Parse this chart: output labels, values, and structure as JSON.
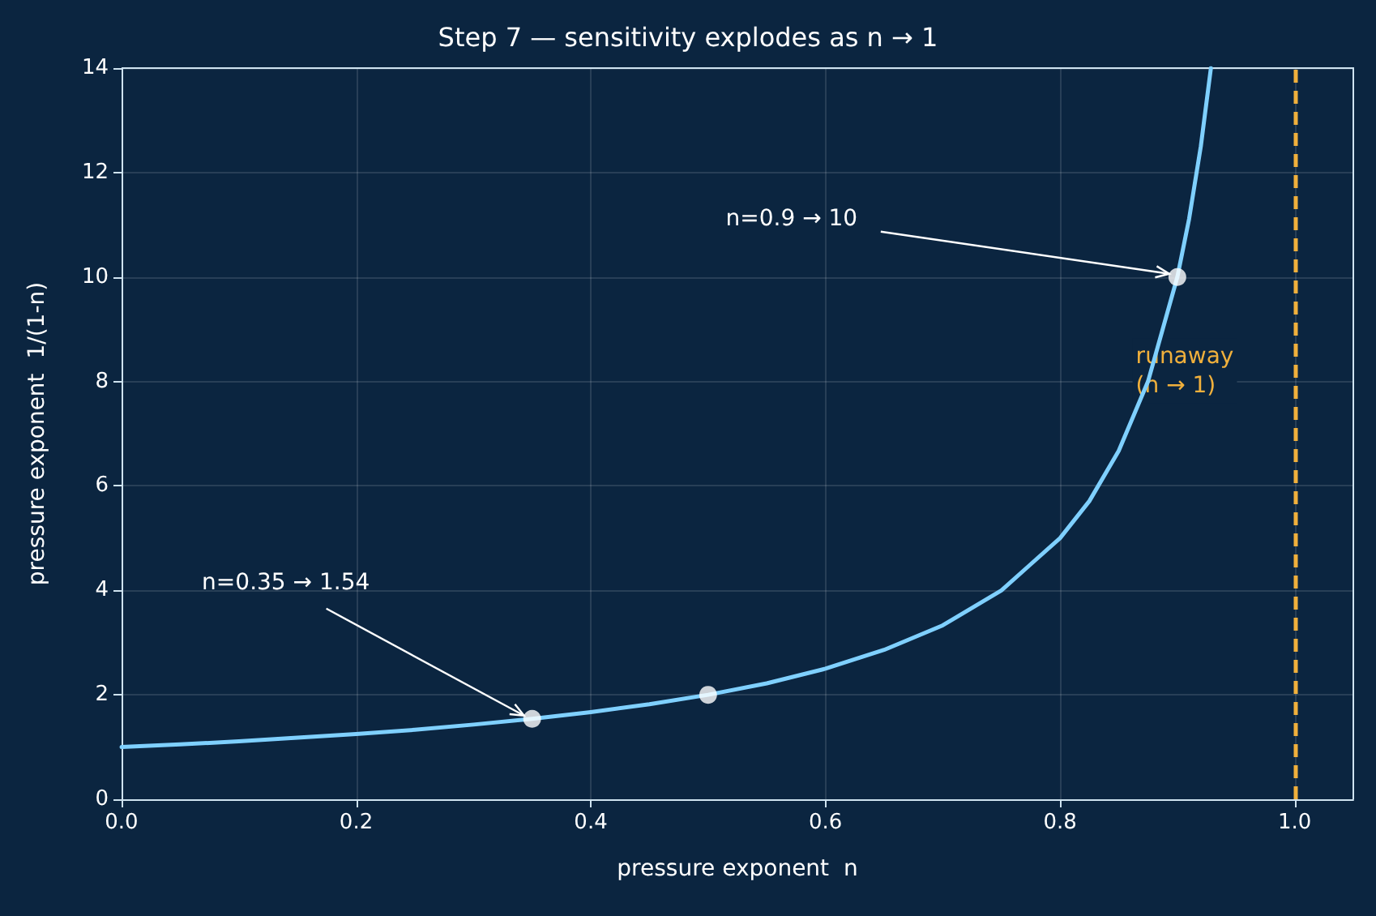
{
  "chart_data": {
    "type": "line",
    "title": "Step 7 — sensitivity explodes as n → 1",
    "xlabel": "pressure exponent  n",
    "ylabel": "pressure exponent  1/(1-n)",
    "xlim": [
      0,
      1.05
    ],
    "xticks": [
      {
        "value": 0,
        "label": "0.0"
      },
      0.2,
      0.4,
      0.6,
      0.8,
      {
        "value": 1,
        "label": "1.0"
      }
    ],
    "ylim": [
      0,
      14
    ],
    "yticks": [
      0,
      2,
      4,
      6,
      8,
      10,
      12,
      14
    ],
    "grid": true,
    "marker": "none",
    "line_style": "solid",
    "series": [
      {
        "color": "#7fd0ff",
        "x": [
          0,
          0.05,
          0.1,
          0.15,
          0.2,
          0.25,
          0.3,
          0.35,
          0.4,
          0.45,
          0.5,
          0.55,
          0.6,
          0.65,
          0.7,
          0.75,
          0.8,
          0.825,
          0.85,
          0.875,
          0.9,
          0.91,
          0.92,
          0.9286
        ],
        "values": [
          1,
          1.05,
          1.11,
          1.18,
          1.25,
          1.33,
          1.43,
          1.54,
          1.67,
          1.82,
          2,
          2.22,
          2.5,
          2.86,
          3.33,
          4,
          5,
          5.71,
          6.67,
          8,
          10,
          11.11,
          12.5,
          14
        ]
      },
      {
        "type": "scatter",
        "marker": "circle",
        "color": "#ffffff",
        "x": [
          0.35,
          0.5,
          0.9
        ],
        "values": [
          1.54,
          2,
          10
        ]
      }
    ],
    "ref_lines": [
      {
        "axis": "x",
        "value": 1.0,
        "label": "runaway\n(n → 1)",
        "color": "#f0b03c",
        "line_style": "dashed"
      }
    ],
    "annotations": [
      {
        "text": "n=0.9 → 10",
        "x": 0.9,
        "y": 10
      },
      {
        "text": "n=0.35 → 1.54",
        "x": 0.35,
        "y": 1.54
      }
    ]
  }
}
